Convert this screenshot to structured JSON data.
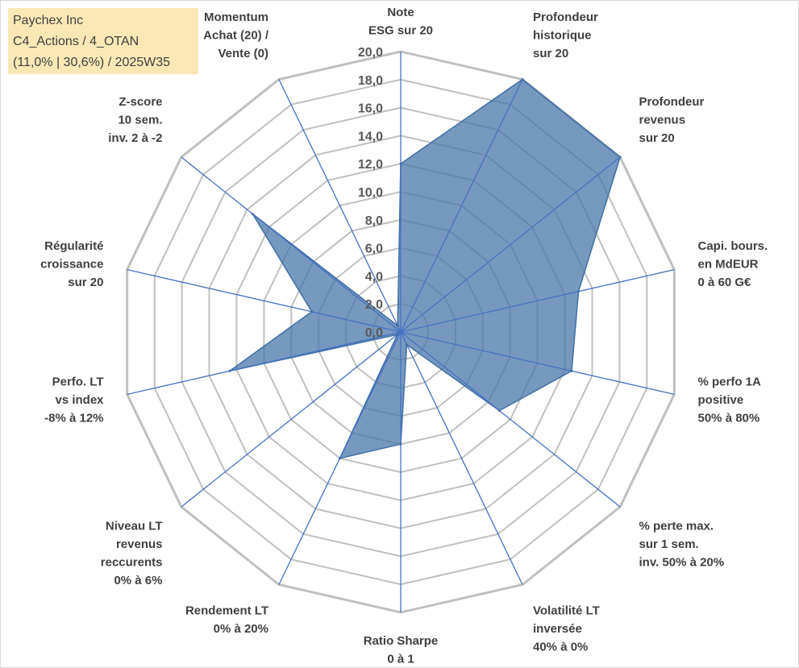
{
  "title_box": {
    "line1": "Paychex Inc",
    "line2": "C4_Actions / 4_OTAN",
    "line3": "(11,0% | 30,6%) / 2025W35"
  },
  "chart_data": {
    "type": "radar",
    "rlim": [
      0,
      20
    ],
    "ticks": [
      "0,0",
      "2,0",
      "4,0",
      "6,0",
      "8,0",
      "10,0",
      "12,0",
      "14,0",
      "16,0",
      "18,0",
      "20,0"
    ],
    "axes": [
      [
        "Note",
        "ESG sur 20"
      ],
      [
        "Profondeur",
        "historique",
        "sur 20"
      ],
      [
        "Profondeur",
        "revenus",
        "sur 20"
      ],
      [
        "Capi. bours.",
        "en MdEUR",
        "0 à 60 G€"
      ],
      [
        "% perfo 1A",
        "positive",
        "50% à 80%"
      ],
      [
        "% perte max.",
        "sur 1 sem.",
        "inv. 50% à 20%"
      ],
      [
        "Volatilité LT",
        "inversée",
        "40% à 0%"
      ],
      [
        "Ratio Sharpe",
        "0 à 1"
      ],
      [
        "Rendement LT",
        "0% à 20%"
      ],
      [
        "Niveau LT",
        "revenus",
        "reccurents",
        "0% à 6%"
      ],
      [
        "Perfo. LT",
        "vs index",
        "-8% à 12%"
      ],
      [
        "Régularité",
        "croissance",
        "sur 20"
      ],
      [
        "Z-score",
        "10 sem.",
        "inv. 2 à -2"
      ],
      [
        "Momentum",
        "Achat (20) /",
        "Vente (0)"
      ]
    ],
    "values": [
      12.0,
      20.0,
      20.0,
      13.0,
      12.5,
      9.0,
      1.0,
      8.0,
      10.0,
      0.3,
      12.5,
      6.5,
      13.5,
      0.5
    ],
    "grid": true,
    "legend": "none",
    "colors": {
      "fill": "#4a77aa",
      "fill_opacity": 0.75,
      "spoke": "#4472c4",
      "grid": "#c0c0c0",
      "title_bg": "#fbe8b5"
    }
  }
}
